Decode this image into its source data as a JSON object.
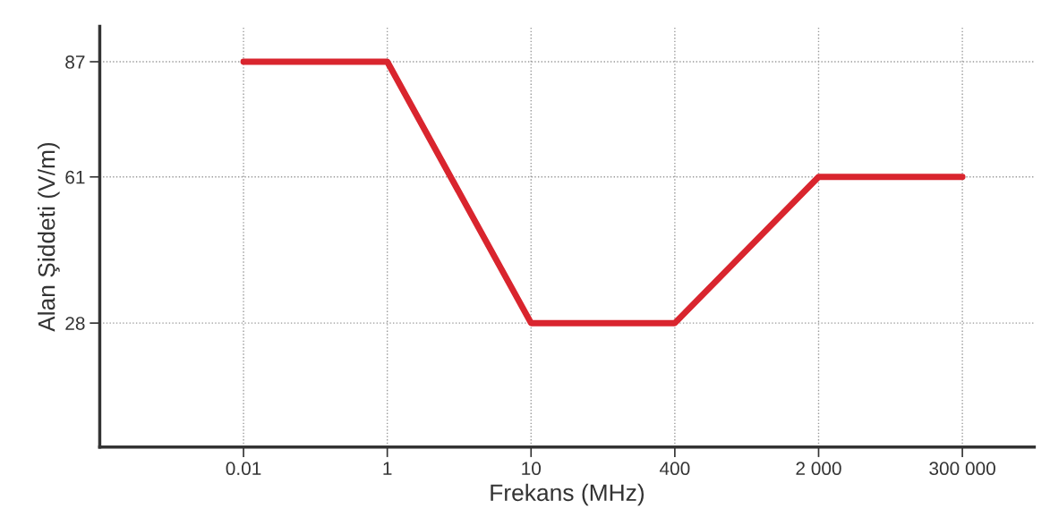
{
  "chart_data": {
    "type": "line",
    "xlabel": "Frekans (MHz)",
    "ylabel": "Alan Şiddeti (V/m)",
    "categories": [
      "0.01",
      "1",
      "10",
      "400",
      "2 000",
      "300 000"
    ],
    "series": [
      {
        "color": "#d9252e",
        "values": [
          87,
          87,
          28,
          28,
          61,
          61
        ]
      }
    ],
    "ylim": [
      0,
      95
    ],
    "yticks": [
      28,
      61,
      87
    ],
    "grid": true,
    "line_style": "solid",
    "marker": "none"
  }
}
